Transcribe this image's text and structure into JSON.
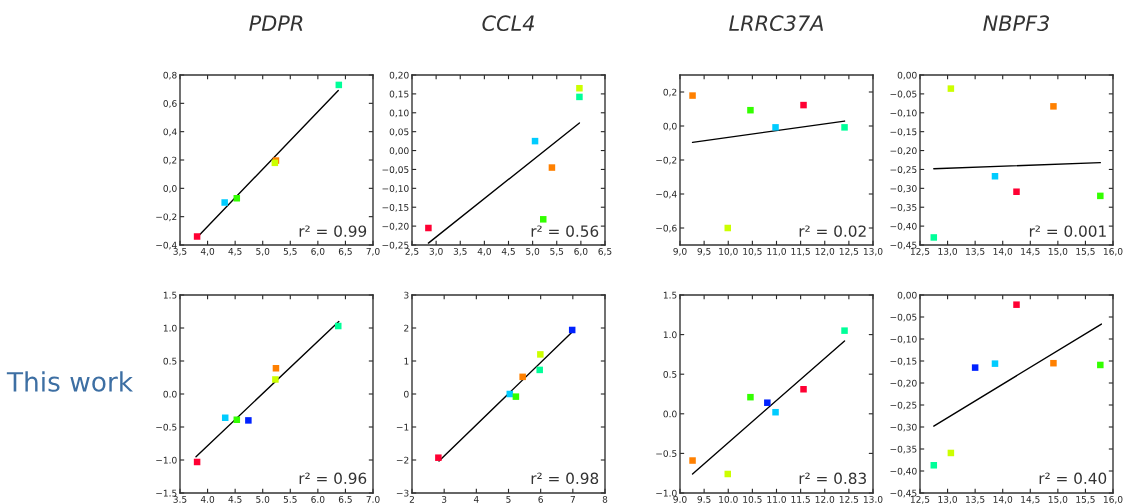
{
  "chart_data": [
    {
      "type": "scatter",
      "title": "PDPR",
      "annotations": [
        "r² = 0.99"
      ],
      "xlim": [
        3.5,
        7.0
      ],
      "ylim": [
        -0.4,
        0.8
      ],
      "xticks": [
        {
          "value": 3.5,
          "label": "3,5"
        },
        {
          "value": 4.0,
          "label": "4,0"
        },
        {
          "value": 4.5,
          "label": "4,5"
        },
        {
          "value": 5.0,
          "label": "5,0"
        },
        {
          "value": 5.5,
          "label": "5,5"
        },
        {
          "value": 6.0,
          "label": "6,0"
        },
        {
          "value": 6.5,
          "label": "6,5"
        },
        {
          "value": 7.0,
          "label": "7,0"
        }
      ],
      "yticks": [
        {
          "value": -0.4,
          "label": "−0,4"
        },
        {
          "value": -0.2,
          "label": "−0,2"
        },
        {
          "value": 0.0,
          "label": "0,0"
        },
        {
          "value": 0.2,
          "label": "0,2"
        },
        {
          "value": 0.4,
          "label": "0,4"
        },
        {
          "value": 0.6,
          "label": "0,6"
        },
        {
          "value": 0.8,
          "label": "0,8"
        }
      ],
      "series": [
        {
          "marker": "square",
          "x": [
            3.81,
            4.31,
            4.53,
            5.24,
            5.22,
            6.38
          ],
          "values": [
            -0.34,
            -0.1,
            -0.07,
            0.196,
            0.18,
            0.73
          ],
          "colors": [
            "#ff0033",
            "#00ccff",
            "#33ff00",
            "#ff8000",
            "#ccff00",
            "#00ff99"
          ]
        },
        {
          "type": "line",
          "color": "#000000",
          "x": [
            3.8,
            6.37
          ],
          "values": [
            -0.35,
            0.69
          ]
        }
      ]
    },
    {
      "type": "scatter",
      "title": "CCL4",
      "annotations": [
        "r² = 0.56"
      ],
      "xlim": [
        2.5,
        6.5
      ],
      "ylim": [
        -0.25,
        0.2
      ],
      "xticks": [
        {
          "value": 2.5,
          "label": "2,5"
        },
        {
          "value": 3.0,
          "label": "3,0"
        },
        {
          "value": 3.5,
          "label": "3,5"
        },
        {
          "value": 4.0,
          "label": "4,0"
        },
        {
          "value": 4.5,
          "label": "4,5"
        },
        {
          "value": 5.0,
          "label": "5,0"
        },
        {
          "value": 5.5,
          "label": "5,5"
        },
        {
          "value": 6.0,
          "label": "6,0"
        },
        {
          "value": 6.5,
          "label": "6,5"
        }
      ],
      "yticks": [
        {
          "value": -0.25,
          "label": "−0,25"
        },
        {
          "value": -0.2,
          "label": "−0,20"
        },
        {
          "value": -0.15,
          "label": "−0,15"
        },
        {
          "value": -0.1,
          "label": "−0,10"
        },
        {
          "value": -0.05,
          "label": "−0,05"
        },
        {
          "value": 0.0,
          "label": "0,00"
        },
        {
          "value": 0.05,
          "label": "0,05"
        },
        {
          "value": 0.1,
          "label": "0,10"
        },
        {
          "value": 0.15,
          "label": "0,15"
        },
        {
          "value": 0.2,
          "label": "0,20"
        }
      ],
      "series": [
        {
          "marker": "square",
          "x": [
            2.84,
            5.05,
            5.22,
            5.4,
            5.97,
            5.97
          ],
          "values": [
            -0.205,
            0.025,
            -0.182,
            -0.045,
            0.142,
            0.165
          ],
          "colors": [
            "#ff0033",
            "#00ccff",
            "#33ff00",
            "#ff8000",
            "#00ff99",
            "#ccff00"
          ]
        },
        {
          "type": "line",
          "color": "#000000",
          "x": [
            2.84,
            5.97
          ],
          "values": [
            -0.245,
            0.073
          ]
        }
      ]
    },
    {
      "type": "scatter",
      "title": "LRRC37A",
      "annotations": [
        "r² = 0.02"
      ],
      "xlim": [
        9.0,
        13.0
      ],
      "ylim": [
        -0.7,
        0.3
      ],
      "xticks": [
        {
          "value": 9.0,
          "label": "9,0"
        },
        {
          "value": 9.5,
          "label": "9,5"
        },
        {
          "value": 10.0,
          "label": "10,0"
        },
        {
          "value": 10.5,
          "label": "10,5"
        },
        {
          "value": 11.0,
          "label": "11,0"
        },
        {
          "value": 11.5,
          "label": "11,5"
        },
        {
          "value": 12.0,
          "label": "12,0"
        },
        {
          "value": 12.5,
          "label": "12,5"
        },
        {
          "value": 13.0,
          "label": "13,0"
        }
      ],
      "yticks": [
        {
          "value": -0.6,
          "label": "−0,6"
        },
        {
          "value": -0.4,
          "label": "−0,4"
        },
        {
          "value": -0.2,
          "label": "−0,2"
        },
        {
          "value": 0.0,
          "label": "0,0"
        },
        {
          "value": 0.2,
          "label": "0,2"
        }
      ],
      "series": [
        {
          "marker": "square",
          "x": [
            9.26,
            10.46,
            11.56,
            10.98,
            12.41,
            9.99
          ],
          "values": [
            0.179,
            0.093,
            0.123,
            -0.008,
            -0.008,
            -0.6
          ],
          "colors": [
            "#ff8000",
            "#33ff00",
            "#ff0033",
            "#00ccff",
            "#00ff99",
            "#ccff00"
          ]
        },
        {
          "type": "line",
          "color": "#000000",
          "x": [
            9.26,
            12.41
          ],
          "values": [
            -0.096,
            0.029
          ]
        }
      ]
    },
    {
      "type": "scatter",
      "title": "NBPF3",
      "annotations": [
        "r² = 0.001"
      ],
      "xlim": [
        12.5,
        16.0
      ],
      "ylim": [
        -0.45,
        0.0
      ],
      "xticks": [
        {
          "value": 12.5,
          "label": "12,5"
        },
        {
          "value": 13.0,
          "label": "13,0"
        },
        {
          "value": 13.5,
          "label": "13,5"
        },
        {
          "value": 14.0,
          "label": "14,0"
        },
        {
          "value": 14.5,
          "label": "14,5"
        },
        {
          "value": 15.0,
          "label": "15,0"
        },
        {
          "value": 15.5,
          "label": "15,5"
        },
        {
          "value": 16.0,
          "label": "16,0"
        }
      ],
      "yticks": [
        {
          "value": -0.45,
          "label": "−0,45"
        },
        {
          "value": -0.4,
          "label": "−0,40"
        },
        {
          "value": -0.35,
          "label": "−0,35"
        },
        {
          "value": -0.3,
          "label": "−0,30"
        },
        {
          "value": -0.25,
          "label": "−0,25"
        },
        {
          "value": -0.2,
          "label": "−0,20"
        },
        {
          "value": -0.15,
          "label": "−0,15"
        },
        {
          "value": -0.1,
          "label": "−0,10"
        },
        {
          "value": -0.05,
          "label": "−0,05"
        },
        {
          "value": 0.0,
          "label": "0,00"
        }
      ],
      "series": [
        {
          "marker": "square",
          "x": [
            12.75,
            13.06,
            13.86,
            14.25,
            14.92,
            15.77
          ],
          "values": [
            -0.43,
            -0.036,
            -0.268,
            -0.309,
            -0.083,
            -0.32
          ],
          "colors": [
            "#00ff99",
            "#ccff00",
            "#00ccff",
            "#ff0033",
            "#ff8000",
            "#33ff00"
          ]
        },
        {
          "type": "line",
          "color": "#000000",
          "x": [
            12.75,
            15.77
          ],
          "values": [
            -0.248,
            -0.232
          ]
        }
      ]
    },
    {
      "type": "scatter",
      "ylabel": "This work",
      "annotations": [
        "r² = 0.96"
      ],
      "xlim": [
        3.5,
        7.0
      ],
      "ylim": [
        -1.5,
        1.5
      ],
      "xticks": [
        3.5,
        {
          "value": 4.0,
          "label": "4.0"
        },
        4.5,
        {
          "value": 5.0,
          "label": "5.0"
        },
        5.5,
        {
          "value": 6.0,
          "label": "6.0"
        },
        6.5,
        {
          "value": 7.0,
          "label": "7.0"
        }
      ],
      "yticks": [
        {
          "value": -1.5,
          "label": "−1.5"
        },
        {
          "value": -1.0,
          "label": "−1.0"
        },
        {
          "value": -0.5,
          "label": "−0.5"
        },
        {
          "value": 0.0,
          "label": "0.0"
        },
        0.5,
        {
          "value": 1.0,
          "label": "1.0"
        },
        1.5
      ],
      "series": [
        {
          "marker": "square",
          "x": [
            3.81,
            4.32,
            4.53,
            4.74,
            5.23,
            5.24,
            6.37
          ],
          "values": [
            -1.03,
            -0.36,
            -0.39,
            -0.4,
            0.22,
            0.39,
            1.03
          ],
          "colors": [
            "#ff0033",
            "#00ccff",
            "#33ff00",
            "#0022ff",
            "#ccff00",
            "#ff8000",
            "#00ff99"
          ]
        },
        {
          "type": "line",
          "color": "#000000",
          "x": [
            3.79,
            6.38
          ],
          "values": [
            -0.95,
            1.1
          ]
        }
      ]
    },
    {
      "type": "scatter",
      "annotations": [
        "r² = 0.98"
      ],
      "xlim": [
        2,
        8
      ],
      "ylim": [
        -3,
        3
      ],
      "xticks": [
        2,
        3,
        4,
        5,
        6,
        7,
        8
      ],
      "yticks": [
        {
          "value": -3,
          "label": "−3"
        },
        {
          "value": -2,
          "label": "−2"
        },
        {
          "value": -1,
          "label": "−1"
        },
        0,
        1,
        2,
        3
      ],
      "series": [
        {
          "marker": "square",
          "x": [
            2.82,
            5.04,
            5.23,
            5.44,
            5.97,
            5.99,
            6.98
          ],
          "values": [
            -1.93,
            0.0,
            -0.08,
            0.52,
            0.73,
            1.2,
            1.94
          ],
          "colors": [
            "#ff0033",
            "#00ccff",
            "#33ff00",
            "#ff8000",
            "#00ff99",
            "#ccff00",
            "#0022ff"
          ]
        },
        {
          "type": "line",
          "color": "#000000",
          "x": [
            2.84,
            6.98
          ],
          "values": [
            -2.03,
            1.88
          ]
        }
      ]
    },
    {
      "type": "scatter",
      "annotations": [
        "r² = 0.83"
      ],
      "xlim": [
        9.0,
        13.0
      ],
      "ylim": [
        -1.0,
        1.5
      ],
      "xticks": [
        {
          "value": 9.0,
          "label": "9.0"
        },
        9.5,
        {
          "value": 10.0,
          "label": "10.0"
        },
        10.5,
        {
          "value": 11.0,
          "label": "11.0"
        },
        11.5,
        {
          "value": 12.0,
          "label": "12.0"
        },
        12.5,
        {
          "value": 13.0,
          "label": "13.0"
        }
      ],
      "yticks": [
        {
          "value": -1.0,
          "label": "−1.0"
        },
        {
          "value": -0.5,
          "label": "−0.5"
        },
        {
          "value": 0.0,
          "label": "0.0"
        },
        0.5,
        {
          "value": 1.0,
          "label": "1.0"
        },
        1.5
      ],
      "series": [
        {
          "marker": "square",
          "x": [
            9.26,
            9.99,
            10.46,
            10.81,
            10.98,
            11.56,
            12.41
          ],
          "values": [
            -0.59,
            -0.76,
            0.21,
            0.14,
            0.02,
            0.31,
            1.05
          ],
          "colors": [
            "#ff8000",
            "#ccff00",
            "#33ff00",
            "#0022ff",
            "#00ccff",
            "#ff0033",
            "#00ff99"
          ]
        },
        {
          "type": "line",
          "color": "#000000",
          "x": [
            9.26,
            12.41
          ],
          "values": [
            -0.76,
            0.92
          ]
        }
      ]
    },
    {
      "type": "scatter",
      "annotations": [
        "r² = 0.40"
      ],
      "xlim": [
        12.5,
        16.0
      ],
      "ylim": [
        -0.45,
        0.0
      ],
      "xticks": [
        {
          "value": 12.5,
          "label": "12,5"
        },
        {
          "value": 13.0,
          "label": "13,0"
        },
        {
          "value": 13.5,
          "label": "13,5"
        },
        {
          "value": 14.0,
          "label": "14,0"
        },
        {
          "value": 14.5,
          "label": "14,5"
        },
        {
          "value": 15.0,
          "label": "15,0"
        },
        {
          "value": 15.5,
          "label": "15,5"
        },
        {
          "value": 16.0,
          "label": "16,0"
        }
      ],
      "yticks": [
        {
          "value": -0.45,
          "label": "−0,45"
        },
        {
          "value": -0.4,
          "label": "−0,40"
        },
        {
          "value": -0.35,
          "label": "−0,35"
        },
        {
          "value": -0.3,
          "label": "−0,30"
        },
        {
          "value": -0.25,
          "label": "−0,25"
        },
        {
          "value": -0.2,
          "label": "−0,20"
        },
        {
          "value": -0.15,
          "label": "−0,15"
        },
        {
          "value": -0.1,
          "label": "−0,10"
        },
        {
          "value": -0.05,
          "label": "−0,05"
        },
        {
          "value": 0.0,
          "label": "0,00"
        }
      ],
      "series": [
        {
          "marker": "square",
          "x": [
            14.25,
            13.5,
            13.86,
            14.92,
            15.77,
            12.75,
            13.06
          ],
          "values": [
            -0.022,
            -0.165,
            -0.156,
            -0.155,
            -0.159,
            -0.387,
            -0.359
          ],
          "colors": [
            "#ff0033",
            "#0022ff",
            "#00ccff",
            "#ff8000",
            "#33ff00",
            "#00ff99",
            "#ccff00"
          ]
        },
        {
          "type": "line",
          "color": "#000000",
          "x": [
            12.75,
            15.79
          ],
          "values": [
            -0.298,
            -0.066
          ]
        }
      ]
    }
  ]
}
